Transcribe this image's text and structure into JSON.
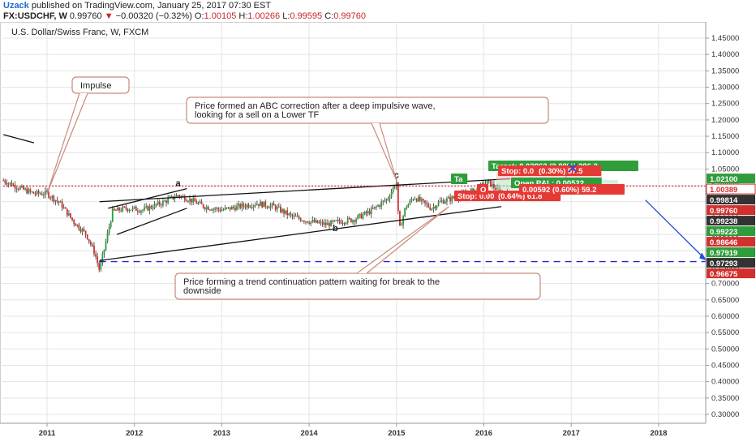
{
  "header": {
    "user": "Uzack",
    "published": "published on TradingView.com, January 25, 2017 07:30 EST",
    "symbol": "FX:USDCHF, W",
    "last": "0.99760",
    "change": "−0.00320 (−0.32%)",
    "o_label": "O:",
    "o_value": "1.00105",
    "h_label": "H:",
    "h_value": "1.00266",
    "l_label": "L:",
    "l_value": "0.99595",
    "c_label": "C:",
    "c_value": "0.99760"
  },
  "chart_data": {
    "type": "candlestick",
    "title": "U.S. Dollar/Swiss Franc, W, FXCM",
    "x_ticks": [
      "2011",
      "2012",
      "2013",
      "2014",
      "2015",
      "2016",
      "2017",
      "2018"
    ],
    "y_ticks": [
      "1.45000",
      "1.40000",
      "1.35000",
      "1.30000",
      "1.25000",
      "1.20000",
      "1.15000",
      "1.10000",
      "1.05000",
      "1.00000",
      "0.95000",
      "0.90000",
      "0.85000",
      "0.80000",
      "0.75000",
      "0.70000",
      "0.65000",
      "0.60000",
      "0.55000",
      "0.50000",
      "0.45000",
      "0.40000",
      "0.35000",
      "0.30000"
    ],
    "ylim": [
      0.3,
      1.45
    ],
    "x_range": [
      2010.5,
      2018.6
    ],
    "price_series": [
      [
        2010.5,
        1.015
      ],
      [
        2010.7,
        0.99
      ],
      [
        2010.85,
        0.975
      ],
      [
        2011.0,
        0.975
      ],
      [
        2011.15,
        0.945
      ],
      [
        2011.3,
        0.89
      ],
      [
        2011.45,
        0.85
      ],
      [
        2011.55,
        0.79
      ],
      [
        2011.6,
        0.74
      ],
      [
        2011.65,
        0.8
      ],
      [
        2011.75,
        0.92
      ],
      [
        2011.9,
        0.93
      ],
      [
        2012.1,
        0.925
      ],
      [
        2012.3,
        0.945
      ],
      [
        2012.5,
        0.97
      ],
      [
        2012.65,
        0.955
      ],
      [
        2012.8,
        0.935
      ],
      [
        2013.0,
        0.925
      ],
      [
        2013.2,
        0.935
      ],
      [
        2013.4,
        0.945
      ],
      [
        2013.6,
        0.935
      ],
      [
        2013.8,
        0.905
      ],
      [
        2014.0,
        0.89
      ],
      [
        2014.2,
        0.88
      ],
      [
        2014.35,
        0.89
      ],
      [
        2014.5,
        0.895
      ],
      [
        2014.7,
        0.92
      ],
      [
        2014.9,
        0.96
      ],
      [
        2015.0,
        1.01
      ],
      [
        2015.03,
        0.86
      ],
      [
        2015.1,
        0.93
      ],
      [
        2015.2,
        0.965
      ],
      [
        2015.4,
        0.93
      ],
      [
        2015.5,
        0.95
      ],
      [
        2015.7,
        0.965
      ],
      [
        2015.9,
        0.985
      ],
      [
        2016.05,
        1.01
      ],
      [
        2016.2,
        0.975
      ],
      [
        2016.4,
        0.97
      ],
      [
        2016.6,
        0.975
      ],
      [
        2016.8,
        0.99
      ],
      [
        2016.95,
        1.02
      ],
      [
        2017.05,
        0.9976
      ]
    ],
    "trendlines": [
      {
        "name": "upper-triangle-line",
        "from": [
          2011.6,
          0.95
        ],
        "to": [
          2016.3,
          1.02
        ]
      },
      {
        "name": "lower-triangle-line",
        "from": [
          2011.6,
          0.77
        ],
        "to": [
          2016.2,
          0.935
        ]
      },
      {
        "name": "inner-upper-line",
        "from": [
          2011.7,
          0.93
        ],
        "to": [
          2012.6,
          0.99
        ]
      },
      {
        "name": "inner-lower-line",
        "from": [
          2011.8,
          0.85
        ],
        "to": [
          2012.6,
          0.93
        ]
      },
      {
        "name": "top-left-line",
        "from": [
          2010.5,
          1.155
        ],
        "to": [
          2010.85,
          1.13
        ]
      },
      {
        "name": "projection-line",
        "from": [
          2017.85,
          0.955
        ],
        "to": [
          2018.55,
          0.77
        ]
      }
    ],
    "horizontal_lines": [
      {
        "name": "support-dashed",
        "y": 0.767,
        "from": 2011.6,
        "to": 2018.55,
        "color": "#2222cc"
      },
      {
        "name": "current-price-dotted",
        "y": 0.9976,
        "from": 2010.5,
        "to": 2018.6,
        "color": "#d32f2f"
      }
    ],
    "wave_labels": [
      {
        "text": "a",
        "x": 2012.5,
        "y": 0.998
      },
      {
        "text": "b",
        "x": 2014.3,
        "y": 0.86
      },
      {
        "text": "c",
        "x": 2015.0,
        "y": 1.022
      }
    ],
    "callouts": [
      {
        "name": "impulse-callout",
        "lines": [
          "Impulse"
        ],
        "anchor": [
          2011.0,
          0.975
        ]
      },
      {
        "name": "abc-callout",
        "lines": [
          "Price formed an ABC correction after a deep impulsive wave,",
          "looking for a sell on a Lower TF"
        ],
        "anchor": [
          2015.0,
          1.015
        ]
      },
      {
        "name": "pattern-callout",
        "lines": [
          "Price forming a trend continuation pattern waiting for break to the",
          "downside"
        ],
        "anchor": [
          2015.6,
          0.935
        ]
      }
    ],
    "position_tools": [
      {
        "name": "target-1",
        "text": "Target: 0.02862 (2.88%) 286.2",
        "color": "#2e9d3a"
      },
      {
        "name": "target-2",
        "text": "Ta",
        "color": "#2e9d3a"
      },
      {
        "name": "stop-1",
        "text": "Stop: 0.00",
        "color": "#e53935"
      },
      {
        "name": "stop-1b",
        "text": "(0.64%) 61.8",
        "color": "#e53935"
      },
      {
        "name": "stop-2",
        "text": "Stop: 0.0",
        "color": "#e53935"
      },
      {
        "name": "stop-2b",
        "text": "(0.30%) 57.5",
        "color": "#e53935"
      },
      {
        "name": "open-pl",
        "text": "Open P&L: 0.00522",
        "color": "#2e9d3a"
      },
      {
        "name": "open-pl-2",
        "text": "0.00592 (0.60%) 59.2",
        "color": "#e53935"
      },
      {
        "name": "open-short",
        "text": "O",
        "color": "#e53935"
      }
    ],
    "price_tags": [
      {
        "text": "1.02100",
        "y": 1.021,
        "bg": "#2e9d3a",
        "fg": "#ffffff"
      },
      {
        "text": "1.00389",
        "y": 1.00389,
        "bg": "#ffffff",
        "fg": "#d32f2f"
      },
      {
        "text": "0.99814",
        "y": 0.99814,
        "bg": "#333333",
        "fg": "#ffffff"
      },
      {
        "text": "0.99760",
        "y": 0.9976,
        "bg": "#d32f2f",
        "fg": "#ffffff"
      },
      {
        "text": "0.99238",
        "y": 0.99238,
        "bg": "#333333",
        "fg": "#ffffff"
      },
      {
        "text": "0.99223",
        "y": 0.99223,
        "bg": "#2e9d3a",
        "fg": "#ffffff"
      },
      {
        "text": "0.98646",
        "y": 0.98646,
        "bg": "#d32f2f",
        "fg": "#ffffff"
      },
      {
        "text": "0.97919",
        "y": 0.97919,
        "bg": "#2e9d3a",
        "fg": "#ffffff"
      },
      {
        "text": "0.97293",
        "y": 0.97293,
        "bg": "#333333",
        "fg": "#ffffff"
      },
      {
        "text": "0.96675",
        "y": 0.96675,
        "bg": "#d32f2f",
        "fg": "#ffffff"
      }
    ],
    "colors": {
      "up": "#2e9d3a",
      "down": "#d32f2f",
      "grid": "#e4e4e4",
      "text": "#333333"
    }
  }
}
